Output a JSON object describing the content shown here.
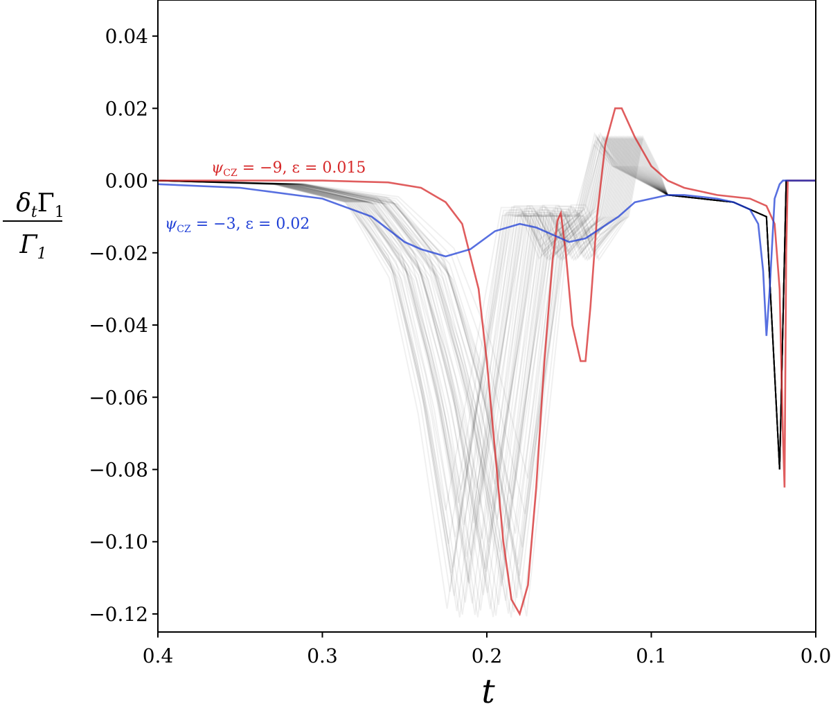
{
  "chart_data": {
    "type": "line",
    "xlabel": "t",
    "ylabel_num": "δ",
    "ylabel_num_sub": "t",
    "ylabel_num_sym": "Γ",
    "ylabel_num_sym_sub": "1",
    "ylabel_den_sym": "Γ",
    "ylabel_den_sub": "1",
    "xlim": [
      0.4,
      0.0
    ],
    "ylim": [
      -0.125,
      0.05
    ],
    "x_reversed": true,
    "xticks": [
      {
        "value": 0.4,
        "label": "0.4"
      },
      {
        "value": 0.3,
        "label": "0.3"
      },
      {
        "value": 0.2,
        "label": "0.2"
      },
      {
        "value": 0.1,
        "label": "0.1"
      },
      {
        "value": 0.0,
        "label": "0.0"
      }
    ],
    "yticks": [
      {
        "value": 0.04,
        "label": "0.04"
      },
      {
        "value": 0.02,
        "label": "0.02"
      },
      {
        "value": 0.0,
        "label": "0.00"
      },
      {
        "value": -0.02,
        "label": "−0.02"
      },
      {
        "value": -0.04,
        "label": "−0.04"
      },
      {
        "value": -0.06,
        "label": "−0.06"
      },
      {
        "value": -0.08,
        "label": "−0.08"
      },
      {
        "value": -0.1,
        "label": "−0.10"
      },
      {
        "value": -0.12,
        "label": "−0.12"
      }
    ],
    "grid": false,
    "ensemble": {
      "count": 60,
      "color": "#000000",
      "opacity": 0.06,
      "description_points": [
        [
          0.4,
          0.0
        ],
        [
          0.32,
          -0.001
        ],
        [
          0.27,
          -0.006
        ],
        [
          0.24,
          -0.025
        ],
        [
          0.22,
          -0.06
        ],
        [
          0.2,
          -0.11
        ],
        [
          0.185,
          -0.06
        ],
        [
          0.17,
          -0.009
        ],
        [
          0.16,
          -0.009
        ],
        [
          0.15,
          -0.02
        ],
        [
          0.13,
          -0.01
        ],
        [
          0.12,
          0.012
        ],
        [
          0.11,
          0.004
        ],
        [
          0.09,
          -0.004
        ],
        [
          0.05,
          -0.006
        ],
        [
          0.03,
          -0.01
        ],
        [
          0.022,
          -0.08
        ],
        [
          0.018,
          0.0
        ],
        [
          0.0,
          0.0
        ]
      ]
    },
    "series": [
      {
        "color": "#d62728",
        "label_psi": "ψ",
        "label_sub": "CZ",
        "label_rest": " = −9,  ε = 0.015",
        "points": [
          [
            0.4,
            0.0
          ],
          [
            0.35,
            0.0
          ],
          [
            0.3,
            0.0
          ],
          [
            0.26,
            -0.0005
          ],
          [
            0.24,
            -0.002
          ],
          [
            0.225,
            -0.006
          ],
          [
            0.215,
            -0.012
          ],
          [
            0.205,
            -0.03
          ],
          [
            0.2,
            -0.05
          ],
          [
            0.195,
            -0.075
          ],
          [
            0.19,
            -0.1
          ],
          [
            0.185,
            -0.116
          ],
          [
            0.18,
            -0.12
          ],
          [
            0.175,
            -0.112
          ],
          [
            0.17,
            -0.085
          ],
          [
            0.165,
            -0.05
          ],
          [
            0.16,
            -0.022
          ],
          [
            0.157,
            -0.011
          ],
          [
            0.155,
            -0.009
          ],
          [
            0.152,
            -0.02
          ],
          [
            0.148,
            -0.04
          ],
          [
            0.143,
            -0.05
          ],
          [
            0.14,
            -0.05
          ],
          [
            0.137,
            -0.035
          ],
          [
            0.133,
            -0.01
          ],
          [
            0.128,
            0.01
          ],
          [
            0.122,
            0.02
          ],
          [
            0.118,
            0.02
          ],
          [
            0.11,
            0.012
          ],
          [
            0.1,
            0.004
          ],
          [
            0.09,
            0.0
          ],
          [
            0.08,
            -0.002
          ],
          [
            0.06,
            -0.004
          ],
          [
            0.04,
            -0.005
          ],
          [
            0.03,
            -0.007
          ],
          [
            0.025,
            -0.012
          ],
          [
            0.022,
            -0.03
          ],
          [
            0.02,
            -0.07
          ],
          [
            0.019,
            -0.085
          ],
          [
            0.018,
            -0.02
          ],
          [
            0.017,
            0.0
          ],
          [
            0.0,
            0.0
          ]
        ]
      },
      {
        "color": "#1f3fd6",
        "label_psi": "ψ",
        "label_sub": "CZ",
        "label_rest": " = −3,  ε = 0.02",
        "points": [
          [
            0.4,
            -0.001
          ],
          [
            0.35,
            -0.002
          ],
          [
            0.3,
            -0.005
          ],
          [
            0.27,
            -0.01
          ],
          [
            0.25,
            -0.017
          ],
          [
            0.24,
            -0.019
          ],
          [
            0.225,
            -0.021
          ],
          [
            0.21,
            -0.019
          ],
          [
            0.195,
            -0.014
          ],
          [
            0.18,
            -0.012
          ],
          [
            0.17,
            -0.013
          ],
          [
            0.16,
            -0.015
          ],
          [
            0.15,
            -0.017
          ],
          [
            0.14,
            -0.016
          ],
          [
            0.13,
            -0.013
          ],
          [
            0.12,
            -0.01
          ],
          [
            0.11,
            -0.006
          ],
          [
            0.1,
            -0.005
          ],
          [
            0.09,
            -0.004
          ],
          [
            0.08,
            -0.004
          ],
          [
            0.06,
            -0.005
          ],
          [
            0.05,
            -0.006
          ],
          [
            0.04,
            -0.008
          ],
          [
            0.035,
            -0.012
          ],
          [
            0.032,
            -0.025
          ],
          [
            0.03,
            -0.043
          ],
          [
            0.028,
            -0.03
          ],
          [
            0.025,
            -0.005
          ],
          [
            0.022,
            -0.001
          ],
          [
            0.02,
            0.0
          ],
          [
            0.0,
            0.0
          ]
        ]
      }
    ]
  }
}
